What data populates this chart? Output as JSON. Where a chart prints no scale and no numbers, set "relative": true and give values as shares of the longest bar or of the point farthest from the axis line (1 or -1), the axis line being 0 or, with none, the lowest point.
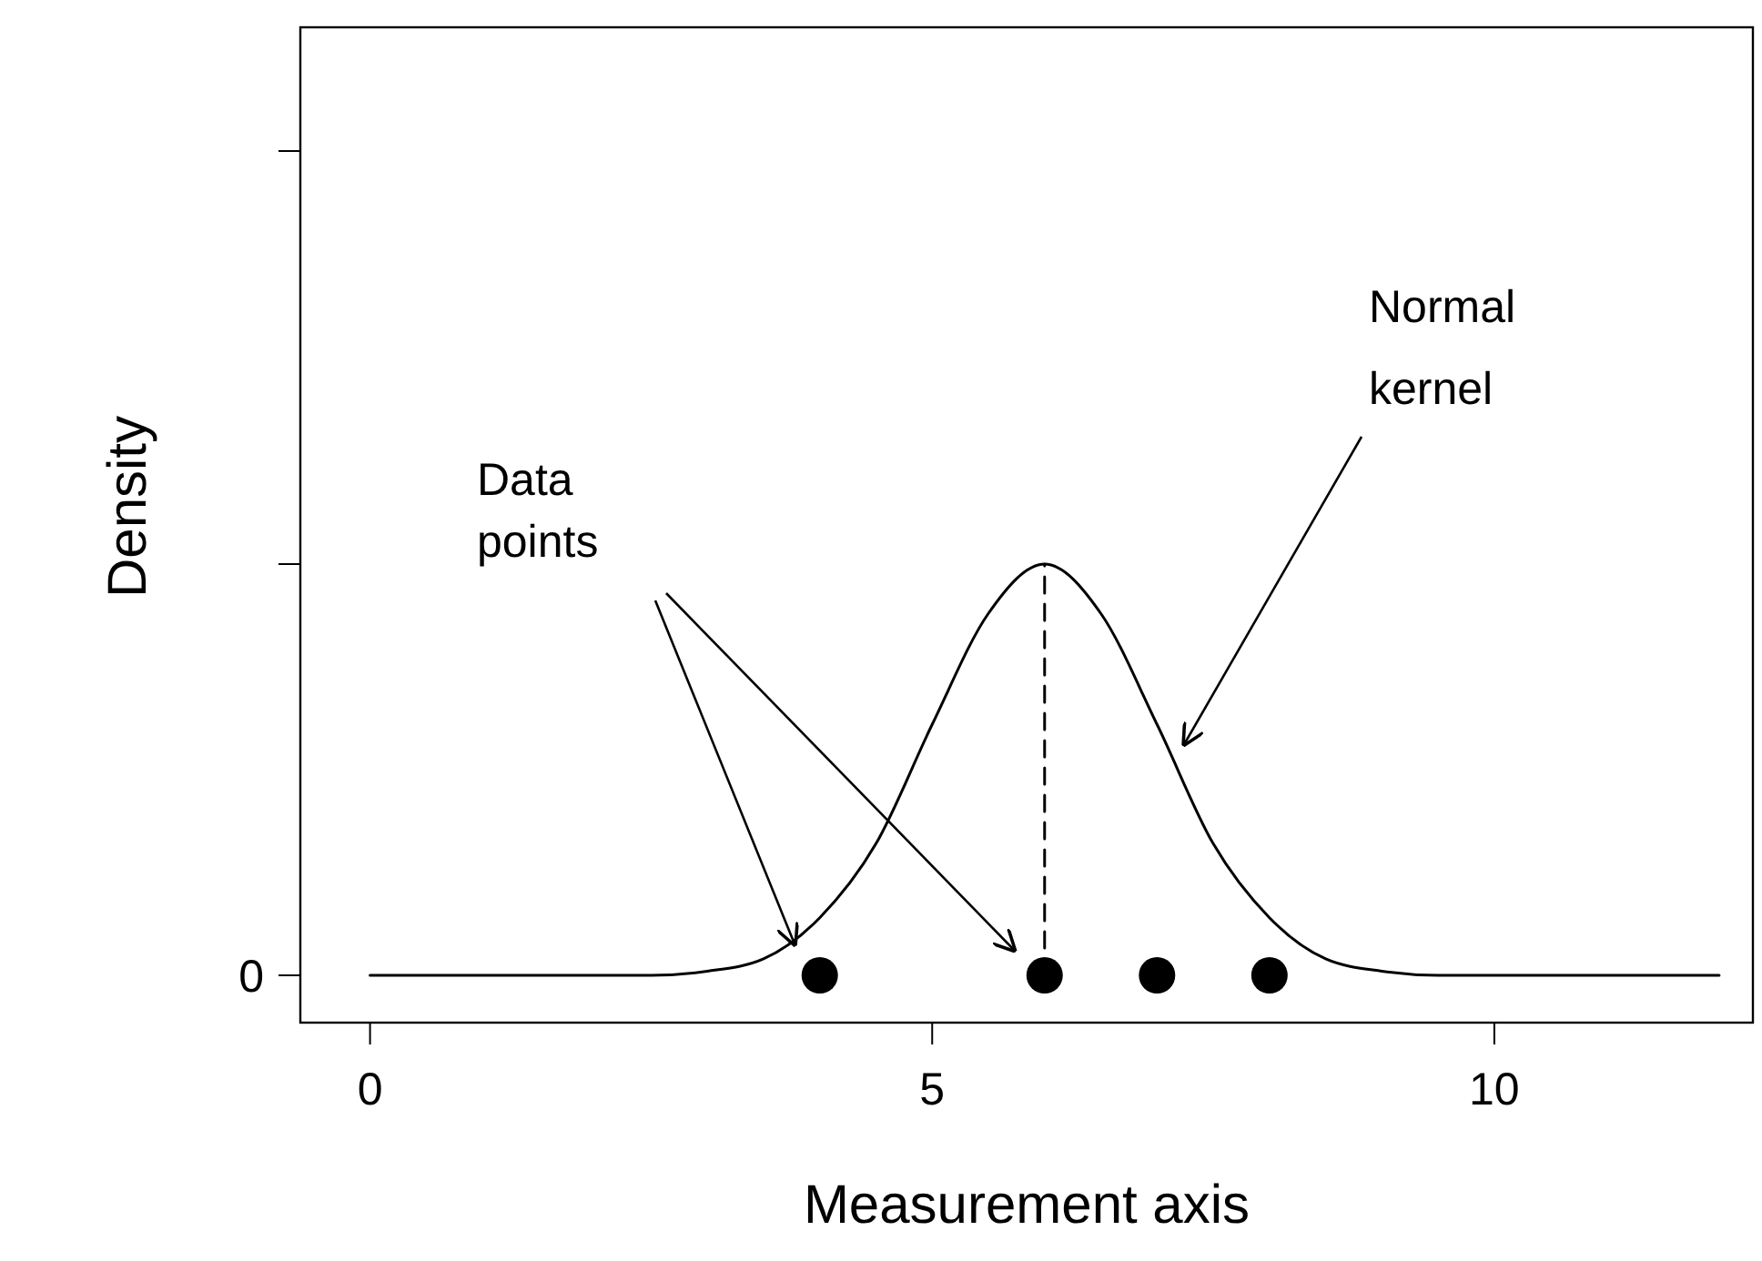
{
  "chart_data": {
    "type": "line",
    "xlabel": "Measurement axis",
    "ylabel": "Density",
    "xlim": [
      -0.62,
      12.3
    ],
    "xticks": [
      0,
      5,
      10
    ],
    "relative": true,
    "series": [
      {
        "color": "#000000",
        "marker": "none",
        "line_style": "solid",
        "x": [
          0,
          1,
          2,
          2.5,
          3,
          3.5,
          4,
          4.5,
          5,
          5.5,
          6,
          6.5,
          7,
          7.5,
          8,
          8.5,
          9,
          9.5,
          10,
          11,
          12
        ],
        "values": [
          0,
          0,
          0,
          0,
          0.01,
          0.04,
          0.14,
          0.32,
          0.61,
          0.88,
          1,
          0.88,
          0.61,
          0.32,
          0.14,
          0.04,
          0.01,
          0,
          0,
          0,
          0
        ]
      },
      {
        "color": "#000000",
        "marker": "none",
        "line_style": "dashed",
        "x": [
          6,
          6
        ],
        "values": [
          0,
          1
        ]
      },
      {
        "type": "scatter",
        "color": "#000000",
        "marker": "circle",
        "x": [
          4,
          6,
          7,
          8
        ],
        "values": [
          0,
          0,
          0,
          0
        ]
      }
    ],
    "annotations": [
      "Data points",
      "Normal kernel",
      "0"
    ]
  }
}
